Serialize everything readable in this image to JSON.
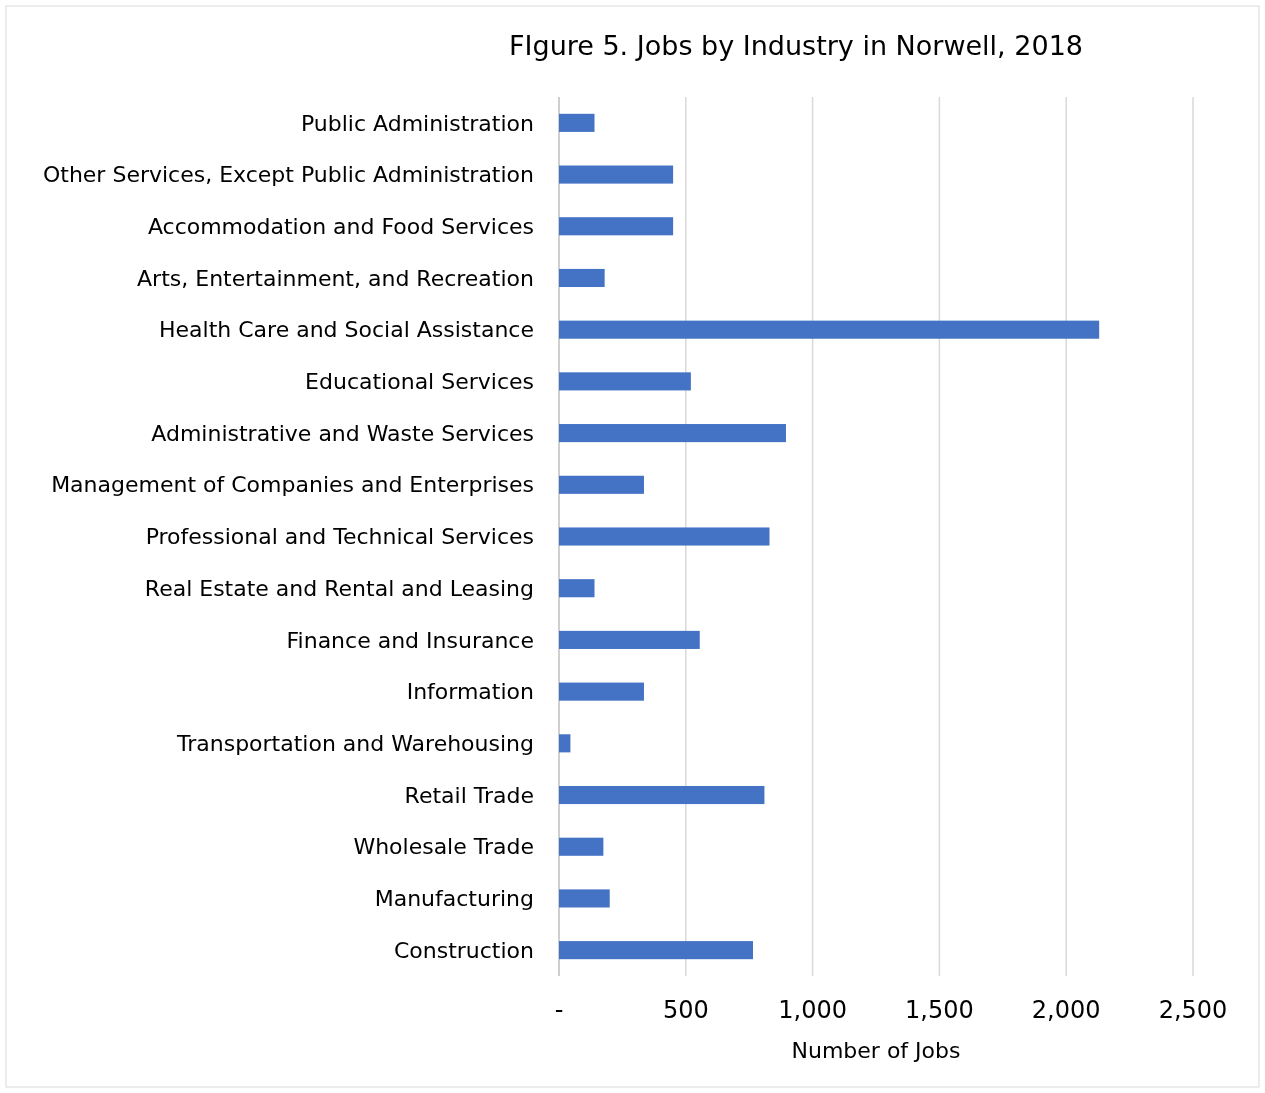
{
  "chart_data": {
    "type": "bar",
    "orientation": "horizontal",
    "title": "FIgure 5. Jobs by Industry in Norwell, 2018",
    "xlabel": "Number of Jobs",
    "categories": [
      "Public Administration",
      "Other Services, Except Public Administration",
      "Accommodation and Food Services",
      "Arts, Entertainment, and Recreation",
      "Health Care and Social Assistance",
      "Educational Services",
      "Administrative and Waste Services",
      "Management of Companies and Enterprises",
      "Professional and Technical Services",
      "Real Estate and Rental and Leasing",
      "Finance and Insurance",
      "Information",
      "Transportation and Warehousing",
      "Retail Trade",
      "Wholesale Trade",
      "Manufacturing",
      "Construction"
    ],
    "values": [
      140,
      450,
      450,
      180,
      2130,
      520,
      895,
      335,
      830,
      140,
      555,
      335,
      45,
      810,
      175,
      200,
      765
    ],
    "color": "#4472c4",
    "xlim": [
      0,
      2500
    ],
    "xticks": [
      {
        "value": 0,
        "label": "-"
      },
      {
        "value": 500,
        "label": "500"
      },
      {
        "value": 1000,
        "label": "1,000"
      },
      {
        "value": 1500,
        "label": "1,500"
      },
      {
        "value": 2000,
        "label": "2,000"
      },
      {
        "value": 2500,
        "label": "2,500"
      }
    ],
    "grid": "x"
  }
}
